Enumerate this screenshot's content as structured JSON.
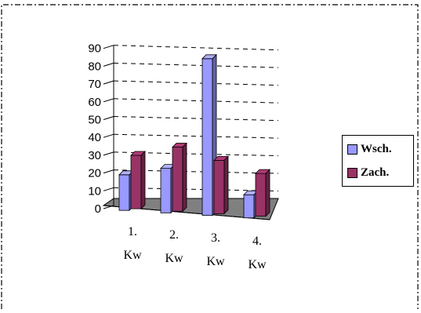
{
  "chart_data": {
    "type": "bar",
    "categories": [
      "1. Kw",
      "2. Kw",
      "3. Kw",
      "4. Kw"
    ],
    "series": [
      {
        "name": "Wsch.",
        "values": [
          20,
          25,
          88,
          13
        ],
        "color": "#9999ff"
      },
      {
        "name": "Zach.",
        "values": [
          30,
          36,
          30,
          24
        ],
        "color": "#993366"
      }
    ],
    "yticks": [
      0,
      10,
      20,
      30,
      40,
      50,
      60,
      70,
      80,
      90
    ],
    "ylim": [
      0,
      90
    ],
    "grid": true,
    "legend_position": "right",
    "three_d": true,
    "floor_color": "#808080"
  },
  "legend": {
    "labels": [
      "Wsch.",
      "Zach."
    ]
  }
}
